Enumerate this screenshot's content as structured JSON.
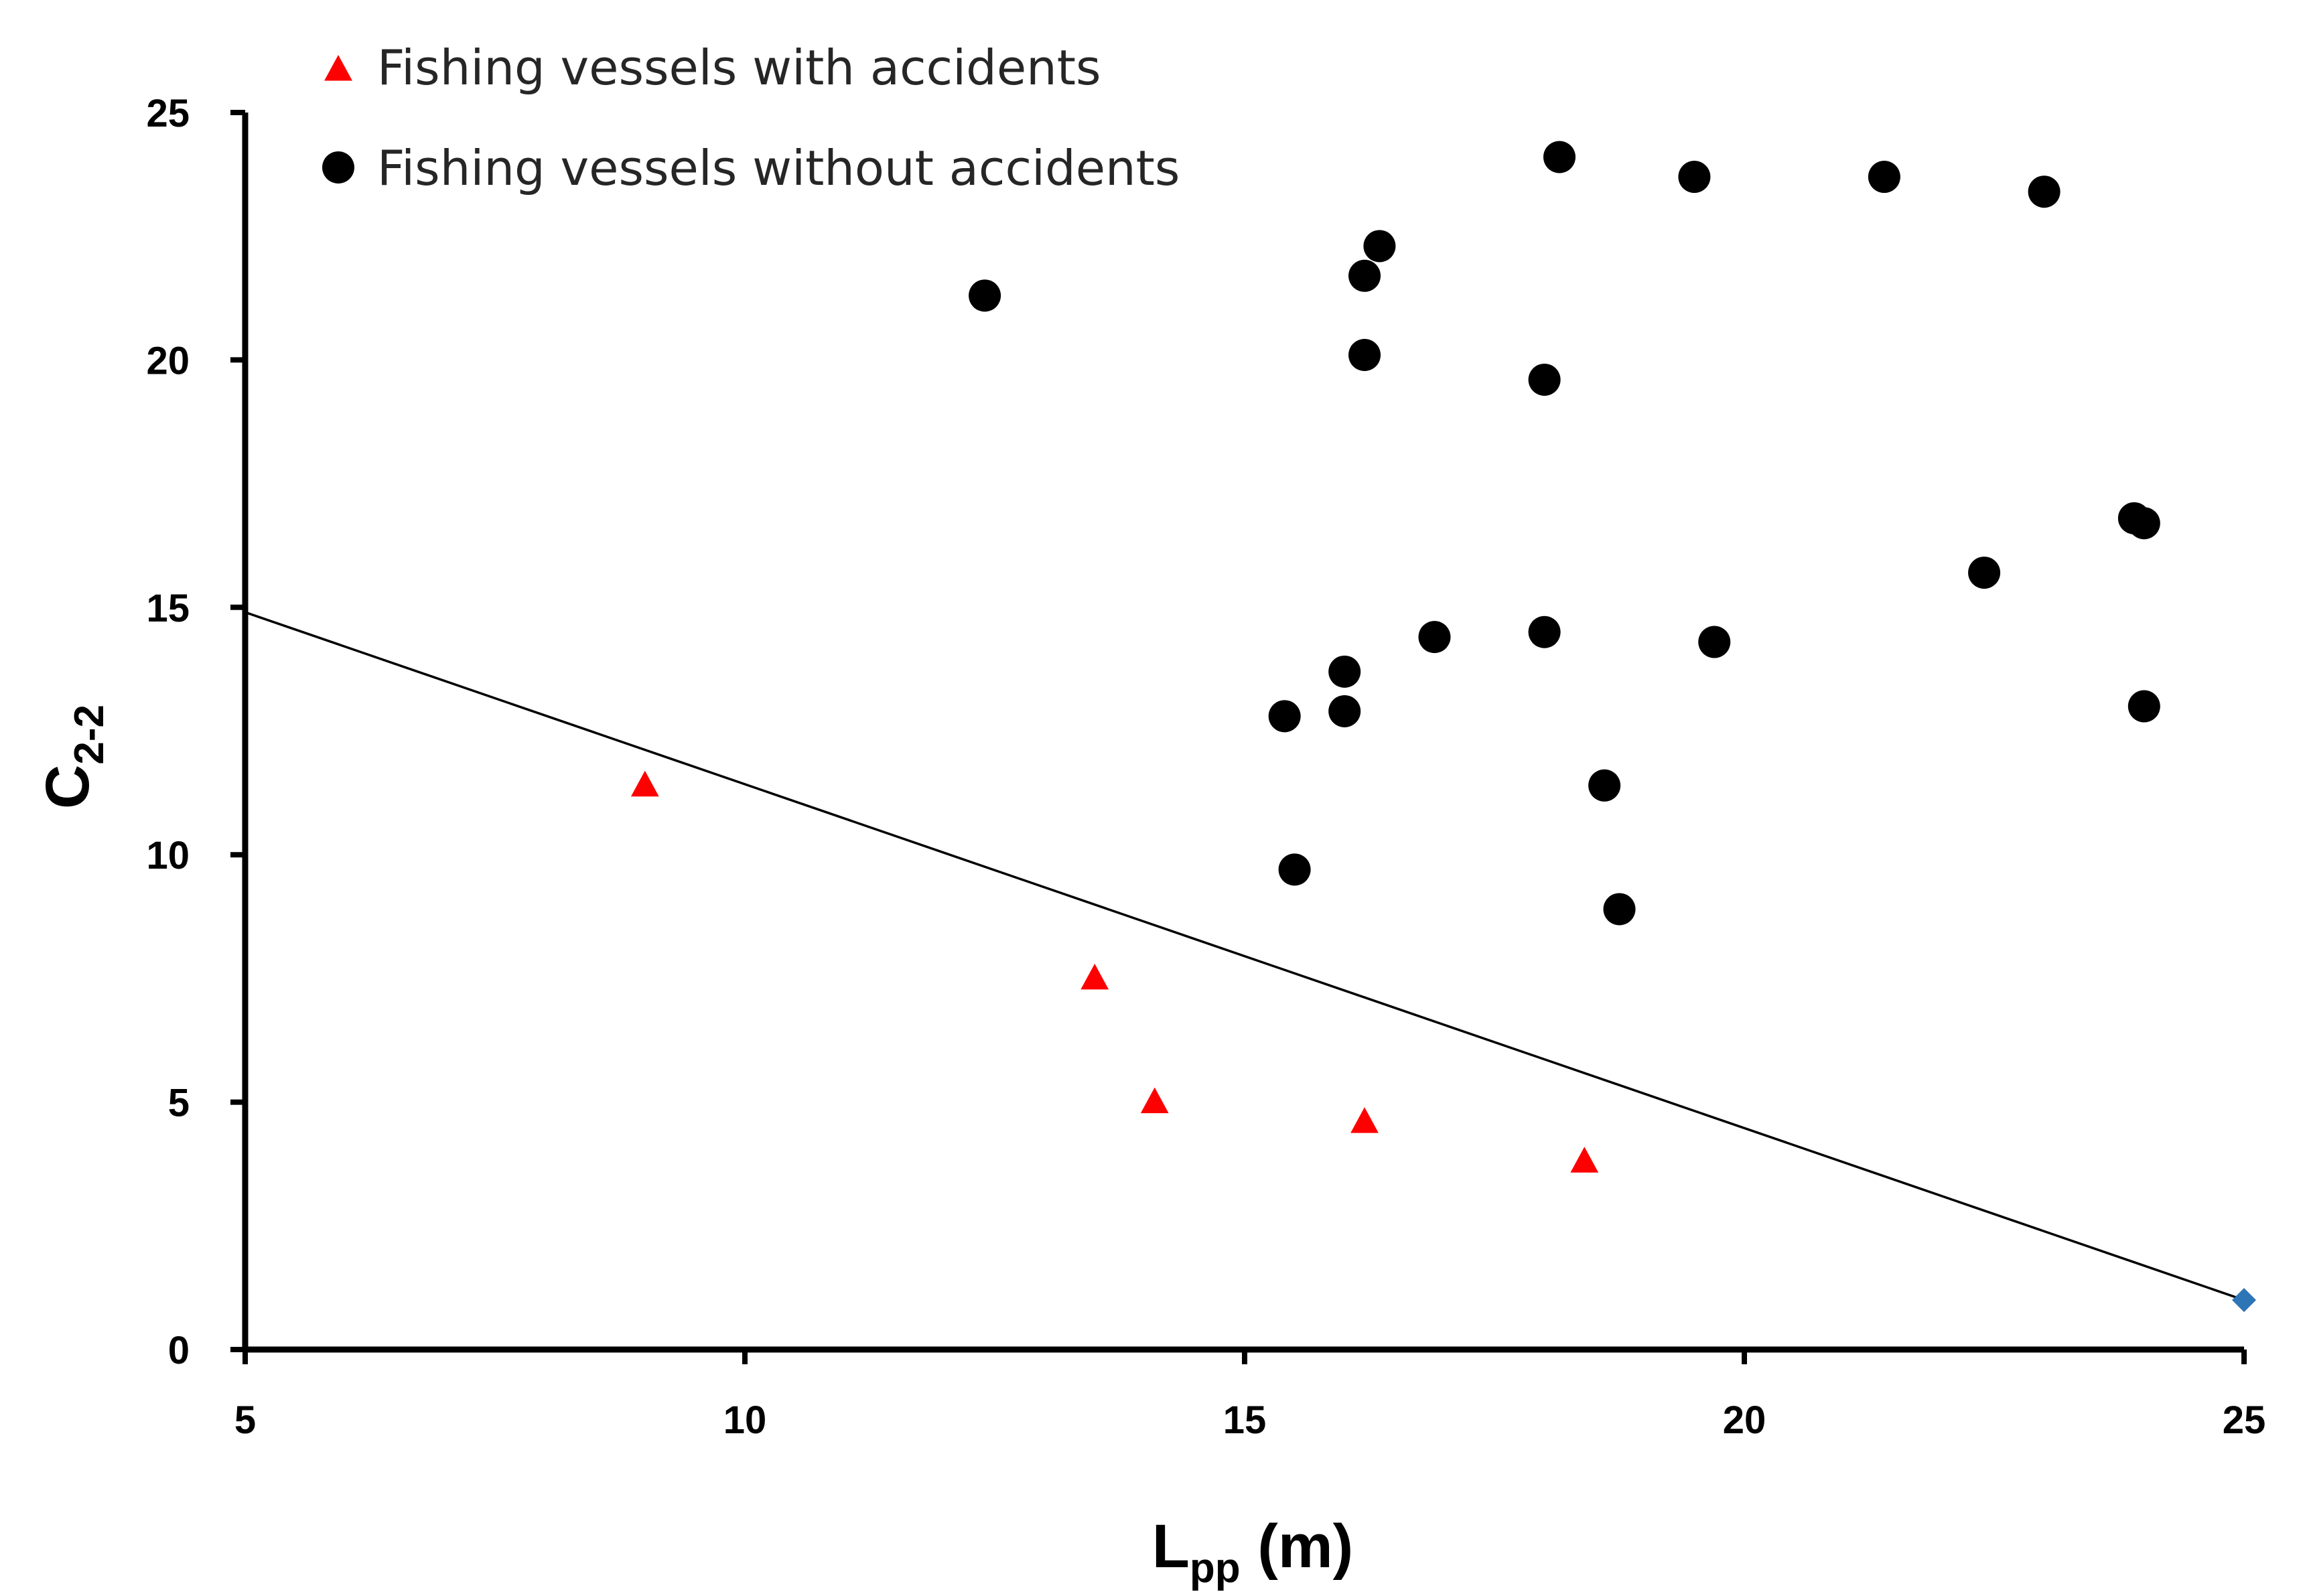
{
  "chart_data": {
    "type": "scatter",
    "xlabel": {
      "main": "L",
      "sub": "pp",
      "rest": " (m)"
    },
    "ylabel": {
      "main": "C",
      "sub": "2-2"
    },
    "xlim": [
      5,
      25
    ],
    "ylim": [
      0,
      25
    ],
    "x_ticks": [
      "5",
      "10",
      "15",
      "20",
      "25"
    ],
    "y_ticks": [
      "0",
      "5",
      "10",
      "15",
      "20",
      "25"
    ],
    "grid": false,
    "legend_position": "top-left",
    "series": [
      {
        "name": "Fishing vessels with accidents",
        "marker": "triangle",
        "color": "#ff0000",
        "points": [
          [
            9.0,
            11.4
          ],
          [
            13.5,
            7.5
          ],
          [
            14.1,
            5.0
          ],
          [
            16.2,
            4.6
          ],
          [
            18.4,
            3.8
          ]
        ]
      },
      {
        "name": "Fishing vessels without accidents",
        "marker": "circle",
        "color": "#000000",
        "points": [
          [
            12.4,
            21.3
          ],
          [
            16.2,
            21.7
          ],
          [
            16.35,
            22.3
          ],
          [
            16.2,
            20.1
          ],
          [
            18.15,
            24.1
          ],
          [
            19.5,
            23.7
          ],
          [
            21.4,
            23.7
          ],
          [
            23.0,
            23.4
          ],
          [
            18.0,
            19.6
          ],
          [
            23.9,
            16.8
          ],
          [
            24.0,
            16.7
          ],
          [
            22.4,
            15.7
          ],
          [
            16.9,
            14.4
          ],
          [
            18.0,
            14.5
          ],
          [
            19.7,
            14.3
          ],
          [
            16.0,
            13.7
          ],
          [
            15.4,
            12.8
          ],
          [
            16.0,
            12.9
          ],
          [
            24.0,
            13.0
          ],
          [
            18.6,
            11.4
          ],
          [
            15.5,
            9.7
          ],
          [
            18.75,
            8.9
          ]
        ]
      }
    ],
    "line": {
      "color": "#000000",
      "points": [
        [
          5,
          14.9
        ],
        [
          25,
          1.0
        ]
      ]
    },
    "endpoint_marker": {
      "marker": "diamond",
      "color": "#2e75b6",
      "point": [
        25,
        1.0
      ]
    }
  }
}
